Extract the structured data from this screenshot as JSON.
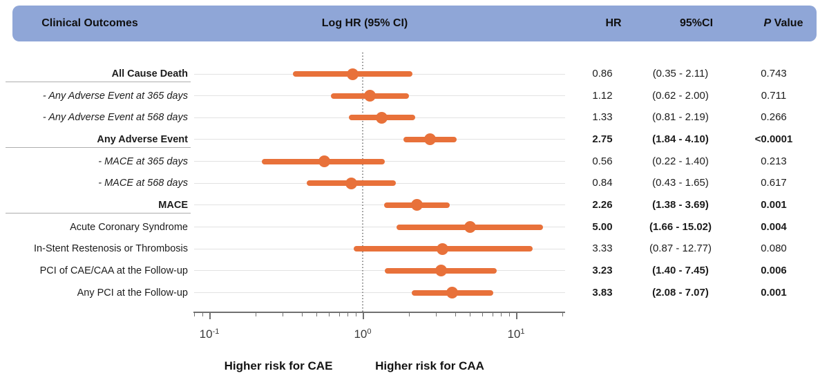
{
  "colors": {
    "header_bg": "#8FA6D7",
    "accent_orange": "#E8713A",
    "gridline": "#e2e2e2",
    "separator": "#adadad"
  },
  "header": {
    "clinical_outcomes": "Clinical Outcomes",
    "log_hr": "Log HR (95% CI)",
    "hr": "HR",
    "ci": "95%CI",
    "p_italic": "P",
    "p_rest": "Value"
  },
  "chart_data": {
    "type": "forest",
    "x_scale": "log10",
    "x_range": [
      0.08,
      20
    ],
    "reference_line": 1,
    "grid": "horizontal-row-lines",
    "marker": "circle",
    "xlabel_left": "Higher risk for CAE",
    "xlabel_right": "Higher risk for CAA",
    "major_ticks": [
      {
        "v": 0.1,
        "base": "10",
        "exp": "-1"
      },
      {
        "v": 1,
        "base": "10",
        "exp": "0"
      },
      {
        "v": 10,
        "base": "10",
        "exp": "1"
      }
    ],
    "minor_ticks": [
      0.08,
      0.09,
      0.2,
      0.3,
      0.4,
      0.5,
      0.6,
      0.7,
      0.8,
      0.9,
      2,
      3,
      4,
      5,
      6,
      7,
      8,
      9,
      20
    ],
    "rows": [
      {
        "label": "All Cause Death",
        "label_style": "bold",
        "hr": 0.86,
        "lo": 0.35,
        "hi": 2.11,
        "hr_text": "0.86",
        "ci_text": "(0.35 - 2.11)",
        "p_text": "0.743",
        "values_bold": false,
        "separator_below": true
      },
      {
        "label": "- Any Adverse Event at 365 days",
        "label_style": "italic",
        "hr": 1.12,
        "lo": 0.62,
        "hi": 2.0,
        "hr_text": "1.12",
        "ci_text": "(0.62 - 2.00)",
        "p_text": "0.711",
        "values_bold": false,
        "separator_below": false
      },
      {
        "label": "- Any Adverse Event at 568 days",
        "label_style": "italic",
        "hr": 1.33,
        "lo": 0.81,
        "hi": 2.19,
        "hr_text": "1.33",
        "ci_text": "(0.81 - 2.19)",
        "p_text": "0.266",
        "values_bold": false,
        "separator_below": false
      },
      {
        "label": "Any Adverse Event",
        "label_style": "bold",
        "hr": 2.75,
        "lo": 1.84,
        "hi": 4.1,
        "hr_text": "2.75",
        "ci_text": "(1.84 - 4.10)",
        "p_text": "<0.0001",
        "values_bold": true,
        "separator_below": true
      },
      {
        "label": "- MACE at 365 days",
        "label_style": "italic",
        "hr": 0.56,
        "lo": 0.22,
        "hi": 1.4,
        "hr_text": "0.56",
        "ci_text": "(0.22 - 1.40)",
        "p_text": "0.213",
        "values_bold": false,
        "separator_below": false
      },
      {
        "label": "- MACE at 568 days",
        "label_style": "italic",
        "hr": 0.84,
        "lo": 0.43,
        "hi": 1.65,
        "hr_text": "0.84",
        "ci_text": "(0.43 - 1.65)",
        "p_text": "0.617",
        "values_bold": false,
        "separator_below": false
      },
      {
        "label": "MACE",
        "label_style": "bold",
        "hr": 2.26,
        "lo": 1.38,
        "hi": 3.69,
        "hr_text": "2.26",
        "ci_text": "(1.38 - 3.69)",
        "p_text": "0.001",
        "values_bold": true,
        "separator_below": true
      },
      {
        "label": "Acute Coronary Syndrome",
        "label_style": "regular",
        "hr": 5.0,
        "lo": 1.66,
        "hi": 15.02,
        "hr_text": "5.00",
        "ci_text": "(1.66 - 15.02)",
        "p_text": "0.004",
        "values_bold": true,
        "separator_below": false
      },
      {
        "label": "In-Stent Restenosis or Thrombosis",
        "label_style": "regular",
        "hr": 3.33,
        "lo": 0.87,
        "hi": 12.77,
        "hr_text": "3.33",
        "ci_text": "(0.87 - 12.77)",
        "p_text": "0.080",
        "values_bold": false,
        "separator_below": false
      },
      {
        "label": "PCI of CAE/CAA at the Follow-up",
        "label_style": "regular",
        "hr": 3.23,
        "lo": 1.4,
        "hi": 7.45,
        "hr_text": "3.23",
        "ci_text": "(1.40 - 7.45)",
        "p_text": "0.006",
        "values_bold": true,
        "separator_below": false
      },
      {
        "label": "Any PCI at the Follow-up",
        "label_style": "regular",
        "hr": 3.83,
        "lo": 2.08,
        "hi": 7.07,
        "hr_text": "3.83",
        "ci_text": "(2.08 - 7.07)",
        "p_text": "0.001",
        "values_bold": true,
        "separator_below": false
      }
    ]
  }
}
